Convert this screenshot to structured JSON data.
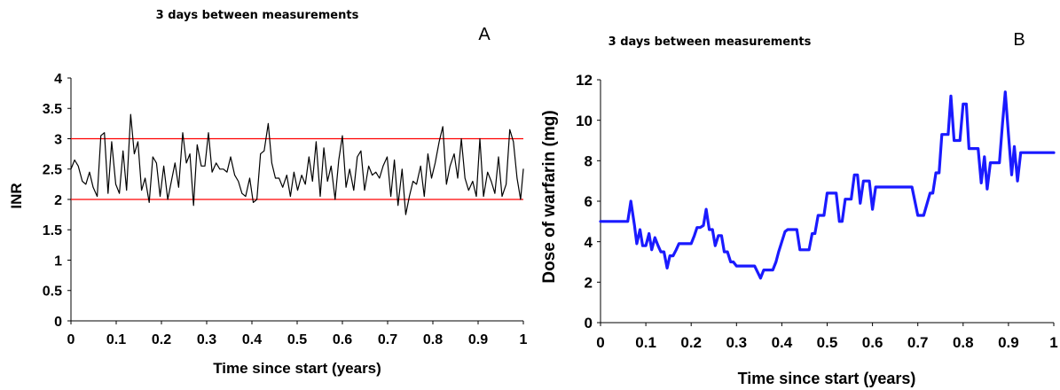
{
  "chart_data": [
    {
      "panel": "A",
      "type": "line",
      "title": "3 days between measurements",
      "xlabel": "Time since start (years)",
      "ylabel": "INR",
      "xlim": [
        0,
        1
      ],
      "ylim": [
        0,
        4
      ],
      "xticks": [
        "0",
        "0.1",
        "0.2",
        "0.3",
        "0.4",
        "0.5",
        "0.6",
        "0.7",
        "0.8",
        "0.9",
        "1"
      ],
      "yticks": [
        "0",
        "0.5",
        "1",
        "1.5",
        "2",
        "2.5",
        "3",
        "3.5",
        "4"
      ],
      "grid": false,
      "series": [
        {
          "color": "#000000",
          "x": [
            0,
            0.008,
            0.016,
            0.025,
            0.033,
            0.041,
            0.049,
            0.058,
            0.066,
            0.074,
            0.082,
            0.09,
            0.099,
            0.107,
            0.115,
            0.123,
            0.132,
            0.14,
            0.148,
            0.156,
            0.164,
            0.173,
            0.181,
            0.189,
            0.197,
            0.205,
            0.214,
            0.222,
            0.23,
            0.238,
            0.247,
            0.255,
            0.263,
            0.271,
            0.279,
            0.288,
            0.296,
            0.304,
            0.312,
            0.321,
            0.329,
            0.337,
            0.345,
            0.353,
            0.362,
            0.37,
            0.378,
            0.386,
            0.395,
            0.403,
            0.411,
            0.419,
            0.427,
            0.436,
            0.444,
            0.452,
            0.46,
            0.468,
            0.477,
            0.485,
            0.493,
            0.501,
            0.51,
            0.518,
            0.526,
            0.534,
            0.542,
            0.551,
            0.559,
            0.567,
            0.575,
            0.584,
            0.592,
            0.6,
            0.608,
            0.616,
            0.625,
            0.633,
            0.641,
            0.649,
            0.658,
            0.666,
            0.674,
            0.682,
            0.69,
            0.699,
            0.707,
            0.715,
            0.723,
            0.732,
            0.74,
            0.748,
            0.756,
            0.764,
            0.773,
            0.781,
            0.789,
            0.797,
            0.805,
            0.814,
            0.822,
            0.83,
            0.838,
            0.847,
            0.855,
            0.863,
            0.871,
            0.879,
            0.888,
            0.896,
            0.904,
            0.912,
            0.921,
            0.929,
            0.937,
            0.945,
            0.953,
            0.962,
            0.97,
            0.978,
            0.986,
            0.994,
            1.0
          ],
          "values": [
            2.5,
            2.65,
            2.55,
            2.3,
            2.25,
            2.45,
            2.2,
            2.05,
            3.05,
            3.1,
            2.1,
            2.95,
            2.25,
            2.1,
            2.8,
            2.15,
            3.4,
            2.75,
            2.95,
            2.15,
            2.35,
            1.95,
            2.7,
            2.6,
            2.05,
            2.55,
            2.0,
            2.3,
            2.6,
            2.2,
            3.1,
            2.6,
            2.75,
            1.9,
            2.9,
            2.55,
            2.55,
            3.1,
            2.45,
            2.6,
            2.5,
            2.5,
            2.45,
            2.7,
            2.4,
            2.3,
            2.1,
            2.05,
            2.35,
            1.95,
            2.0,
            2.75,
            2.8,
            3.25,
            2.6,
            2.35,
            2.35,
            2.2,
            2.4,
            2.05,
            2.45,
            2.15,
            2.4,
            2.25,
            2.7,
            2.3,
            2.95,
            2.05,
            2.85,
            2.3,
            2.55,
            2.0,
            2.65,
            3.05,
            2.2,
            2.5,
            2.15,
            2.7,
            2.8,
            2.15,
            2.55,
            2.4,
            2.45,
            2.35,
            2.55,
            2.7,
            2.05,
            2.65,
            1.9,
            2.5,
            1.75,
            2.05,
            2.3,
            2.25,
            2.55,
            2.05,
            2.75,
            2.35,
            2.6,
            2.95,
            3.2,
            2.25,
            2.55,
            2.75,
            2.35,
            3.0,
            2.35,
            2.15,
            2.3,
            2.05,
            3.0,
            2.05,
            2.45,
            2.3,
            2.1,
            2.7,
            2.05,
            2.25,
            3.15,
            2.95,
            2.35,
            2.0,
            2.5
          ]
        }
      ],
      "reference_lines": [
        {
          "axis": "y",
          "value": 2,
          "color": "#ff0000"
        },
        {
          "axis": "y",
          "value": 3,
          "color": "#ff0000"
        }
      ]
    },
    {
      "panel": "B",
      "type": "line",
      "title": "3 days between measurements",
      "xlabel": "Time since start (years)",
      "ylabel": "Dose of warfarin (mg)",
      "xlim": [
        0,
        1
      ],
      "ylim": [
        0,
        12
      ],
      "xticks": [
        "0",
        "0.1",
        "0.2",
        "0.3",
        "0.4",
        "0.5",
        "0.6",
        "0.7",
        "0.8",
        "0.9",
        "1"
      ],
      "yticks": [
        "0",
        "2",
        "4",
        "6",
        "8",
        "10",
        "12"
      ],
      "grid": false,
      "series": [
        {
          "color": "#1a1aff",
          "x": [
            0,
            0.06,
            0.067,
            0.075,
            0.08,
            0.087,
            0.093,
            0.1,
            0.107,
            0.113,
            0.12,
            0.127,
            0.133,
            0.14,
            0.147,
            0.153,
            0.16,
            0.167,
            0.173,
            0.18,
            0.187,
            0.2,
            0.207,
            0.213,
            0.22,
            0.227,
            0.233,
            0.24,
            0.247,
            0.253,
            0.26,
            0.267,
            0.273,
            0.28,
            0.287,
            0.293,
            0.3,
            0.307,
            0.313,
            0.32,
            0.327,
            0.34,
            0.353,
            0.36,
            0.367,
            0.373,
            0.38,
            0.387,
            0.393,
            0.4,
            0.407,
            0.413,
            0.42,
            0.427,
            0.433,
            0.44,
            0.447,
            0.453,
            0.46,
            0.467,
            0.473,
            0.48,
            0.487,
            0.493,
            0.5,
            0.507,
            0.513,
            0.52,
            0.527,
            0.533,
            0.54,
            0.547,
            0.553,
            0.56,
            0.567,
            0.573,
            0.58,
            0.587,
            0.593,
            0.6,
            0.607,
            0.613,
            0.62,
            0.627,
            0.633,
            0.64,
            0.647,
            0.653,
            0.66,
            0.667,
            0.673,
            0.687,
            0.7,
            0.713,
            0.727,
            0.733,
            0.74,
            0.747,
            0.753,
            0.76,
            0.767,
            0.773,
            0.78,
            0.787,
            0.793,
            0.8,
            0.807,
            0.813,
            0.82,
            0.827,
            0.833,
            0.84,
            0.847,
            0.853,
            0.86,
            0.867,
            0.873,
            0.88,
            0.887,
            0.893,
            0.9,
            0.907,
            0.913,
            0.92,
            0.927,
            0.933,
            0.94,
            0.947,
            0.953,
            0.96,
            0.967,
            0.973,
            0.98,
            0.987,
            0.993,
            1.0
          ],
          "values": [
            5.0,
            5.0,
            6.0,
            4.8,
            3.9,
            4.6,
            3.8,
            3.8,
            4.4,
            3.6,
            4.2,
            3.8,
            3.5,
            3.5,
            2.7,
            3.3,
            3.3,
            3.6,
            3.9,
            3.9,
            3.9,
            3.9,
            4.3,
            4.7,
            4.7,
            4.8,
            5.6,
            4.6,
            4.6,
            3.8,
            4.3,
            4.3,
            3.5,
            3.5,
            3.0,
            3.0,
            2.8,
            2.8,
            2.8,
            2.8,
            2.8,
            2.8,
            2.2,
            2.6,
            2.6,
            2.6,
            2.6,
            3.0,
            3.5,
            4.0,
            4.5,
            4.6,
            4.6,
            4.6,
            4.6,
            3.6,
            3.6,
            3.6,
            3.6,
            4.4,
            4.4,
            5.3,
            5.3,
            5.3,
            6.4,
            6.4,
            6.4,
            6.4,
            5.0,
            5.0,
            6.1,
            6.1,
            6.1,
            7.3,
            7.3,
            5.9,
            7.0,
            7.0,
            7.0,
            5.6,
            6.7,
            6.7,
            6.7,
            6.7,
            6.7,
            6.7,
            6.7,
            6.7,
            6.7,
            6.7,
            6.7,
            6.7,
            5.3,
            5.3,
            6.4,
            6.4,
            7.4,
            7.4,
            9.3,
            9.3,
            9.3,
            11.2,
            9.0,
            9.0,
            9.0,
            10.8,
            10.8,
            8.6,
            8.6,
            8.6,
            8.6,
            6.9,
            8.2,
            6.6,
            7.9,
            7.9,
            7.9,
            7.9,
            9.9,
            11.4,
            9.3,
            7.3,
            8.7,
            7.0,
            8.4,
            8.4,
            8.4,
            8.4,
            8.4,
            8.4,
            8.4,
            8.4,
            8.4,
            8.4,
            8.4,
            8.4
          ]
        }
      ]
    }
  ],
  "panel_letters": {
    "a": "A",
    "b": "B"
  }
}
